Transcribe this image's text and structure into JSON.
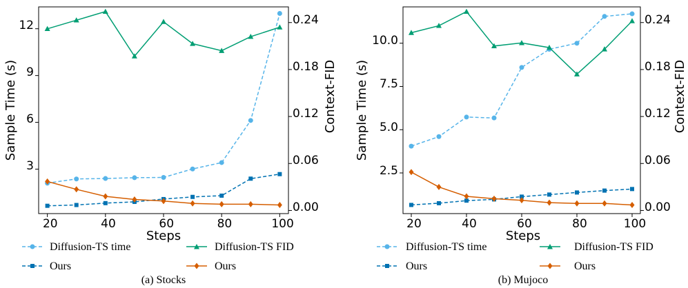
{
  "chart_data": [
    {
      "type": "line",
      "caption": "(a) Stocks",
      "xlabel": "Steps",
      "ylabel_left": "Sample Time (s)",
      "ylabel_right": "Context-FID",
      "xticks": [
        "20",
        "40",
        "60",
        "80",
        "100"
      ],
      "yticks_left": [
        "3",
        "6",
        "9",
        "12"
      ],
      "yticks_right": [
        "0.00",
        "0.06",
        "0.12",
        "0.18",
        "0.24"
      ],
      "xlim": [
        17,
        103
      ],
      "ylim_left": [
        0.15,
        13.4
      ],
      "ylim_right": [
        -0.004,
        0.26
      ],
      "x": [
        20,
        30,
        40,
        50,
        60,
        70,
        80,
        90,
        100
      ],
      "series": [
        {
          "name": "Diffusion-TS time",
          "axis": "left",
          "color": "#56B4E9",
          "style": "dashed",
          "marker": "circle",
          "values": [
            2.1,
            2.37,
            2.4,
            2.45,
            2.47,
            3.01,
            3.42,
            6.12,
            12.98
          ]
        },
        {
          "name": "Diffusion-TS FID",
          "axis": "right",
          "color": "#009E73",
          "style": "solid",
          "marker": "triangle",
          "values": [
            0.232,
            0.243,
            0.254,
            0.197,
            0.241,
            0.213,
            0.204,
            0.222,
            0.234
          ]
        },
        {
          "name": "Ours",
          "axis": "left",
          "color": "#0072B2",
          "style": "dashed",
          "marker": "square",
          "values": [
            0.65,
            0.7,
            0.82,
            0.9,
            1.08,
            1.22,
            1.3,
            2.39,
            2.68
          ]
        },
        {
          "name": "Ours",
          "axis": "right",
          "color": "#D55E00",
          "style": "solid",
          "marker": "diamond",
          "values": [
            0.037,
            0.027,
            0.018,
            0.014,
            0.012,
            0.009,
            0.008,
            0.008,
            0.007
          ]
        }
      ]
    },
    {
      "type": "line",
      "caption": "(b) Mujoco",
      "xlabel": "Steps",
      "ylabel_left": "Sample Time (s)",
      "ylabel_right": "Context-FID",
      "xticks": [
        "20",
        "40",
        "60",
        "80",
        "100"
      ],
      "yticks_left": [
        "2.5",
        "5.0",
        "7.5",
        "10.0"
      ],
      "yticks_right": [
        "0.00",
        "0.06",
        "0.12",
        "0.18",
        "0.24"
      ],
      "xlim": [
        17,
        103
      ],
      "ylim_left": [
        0.15,
        12.1
      ],
      "ylim_right": [
        -0.004,
        0.26
      ],
      "x": [
        20,
        30,
        40,
        50,
        60,
        70,
        80,
        90,
        100
      ],
      "series": [
        {
          "name": "Diffusion-TS time",
          "axis": "left",
          "color": "#56B4E9",
          "style": "dashed",
          "marker": "circle",
          "values": [
            4.05,
            4.6,
            5.73,
            5.68,
            8.6,
            9.65,
            10.0,
            11.55,
            11.7
          ]
        },
        {
          "name": "Diffusion-TS FID",
          "axis": "right",
          "color": "#009E73",
          "style": "solid",
          "marker": "triangle",
          "values": [
            0.227,
            0.236,
            0.254,
            0.21,
            0.214,
            0.208,
            0.174,
            0.206,
            0.242
          ]
        },
        {
          "name": "Ours",
          "axis": "left",
          "color": "#0072B2",
          "style": "dashed",
          "marker": "square",
          "values": [
            0.65,
            0.75,
            0.9,
            0.97,
            1.13,
            1.25,
            1.37,
            1.48,
            1.57
          ]
        },
        {
          "name": "Ours",
          "axis": "right",
          "color": "#D55E00",
          "style": "solid",
          "marker": "diamond",
          "values": [
            0.049,
            0.03,
            0.018,
            0.015,
            0.013,
            0.01,
            0.009,
            0.009,
            0.007
          ]
        }
      ]
    }
  ]
}
